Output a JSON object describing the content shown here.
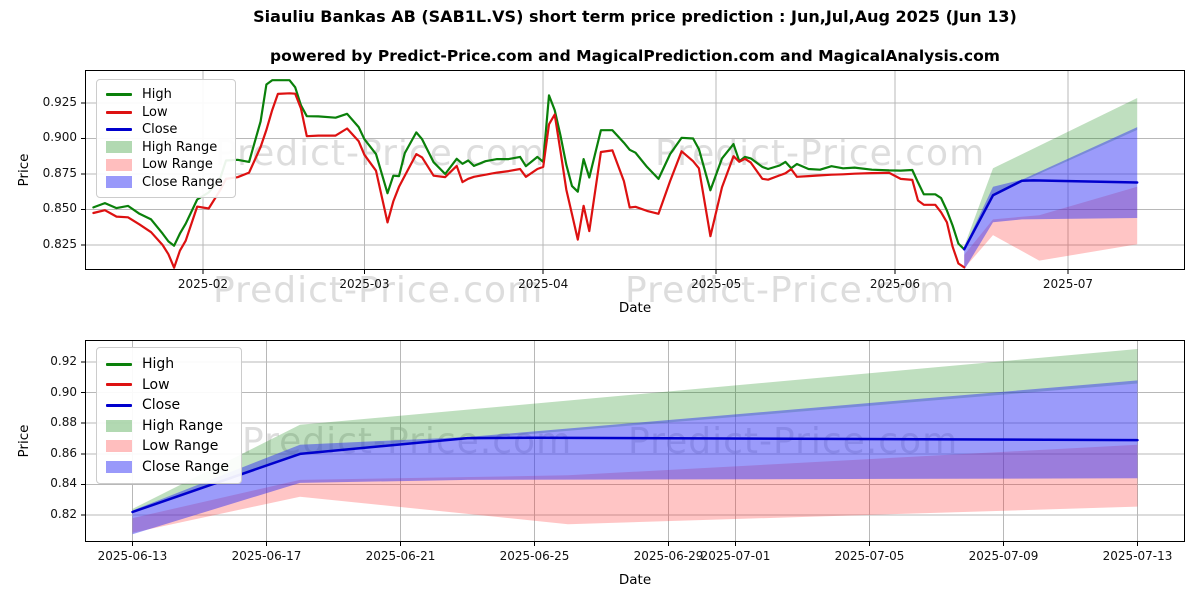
{
  "header": {
    "title": "Siauliu Bankas AB (SAB1L.VS) short term price prediction : Jun,Jul,Aug 2025 (Jun 13)",
    "subtitle": "powered by Predict-Price.com and MagicalPrediction.com and MagicalAnalysis.com"
  },
  "watermark": "Predict-Price.com",
  "colors": {
    "high_line": "#0a800a",
    "low_line": "#dd1111",
    "close_line": "#0000cd",
    "high_band": "rgba(0,128,0,0.25)",
    "low_band": "rgba(255,40,40,0.27)",
    "close_band": "rgba(45,45,245,0.48)",
    "grid": "#b8b8b8",
    "frame": "#000000"
  },
  "chart_data": [
    {
      "type": "line",
      "name": "price-history-and-prediction",
      "xlabel": "Date",
      "ylabel": "Price",
      "grid": true,
      "legend_position": "upper left",
      "xlim": [
        "2025-01-11T13:00",
        "2025-07-21T07:00"
      ],
      "ylim": [
        0.8074,
        0.9482
      ],
      "x_ticks": [
        {
          "t": "2025-02-01",
          "label": "2025-02"
        },
        {
          "t": "2025-03-01",
          "label": "2025-03"
        },
        {
          "t": "2025-04-01",
          "label": "2025-04"
        },
        {
          "t": "2025-05-01",
          "label": "2025-05"
        },
        {
          "t": "2025-06-01",
          "label": "2025-06"
        },
        {
          "t": "2025-07-01",
          "label": "2025-07"
        }
      ],
      "y_ticks": [
        {
          "v": 0.825,
          "label": "0.825"
        },
        {
          "v": 0.85,
          "label": "0.850"
        },
        {
          "v": 0.875,
          "label": "0.875"
        },
        {
          "v": 0.9,
          "label": "0.900"
        },
        {
          "v": 0.925,
          "label": "0.925"
        }
      ],
      "legend": [
        {
          "label": "High",
          "swatch": "line",
          "color": "#0a800a"
        },
        {
          "label": "Low",
          "swatch": "line",
          "color": "#dd1111"
        },
        {
          "label": "Close",
          "swatch": "line",
          "color": "#0000cd"
        },
        {
          "label": "High Range",
          "swatch": "patch",
          "color": "rgba(0,128,0,0.3)"
        },
        {
          "label": "Low Range",
          "swatch": "patch",
          "color": "rgba(255,40,40,0.3)"
        },
        {
          "label": "Close Range",
          "swatch": "patch",
          "color": "rgba(70,70,245,0.55)"
        }
      ],
      "bands": [
        {
          "name": "High Range",
          "fill": "rgba(0,128,0,0.25)",
          "x": [
            "2025-06-13",
            "2025-06-18",
            "2025-07-13"
          ],
          "top": [
            0.824,
            0.879,
            0.9285
          ],
          "bottom": [
            0.8215,
            0.8605,
            0.906
          ]
        },
        {
          "name": "Low Range",
          "fill": "rgba(255,40,40,0.27)",
          "x": [
            "2025-06-13",
            "2025-06-18",
            "2025-06-26",
            "2025-07-13"
          ],
          "top": [
            0.818,
            0.843,
            0.846,
            0.866
          ],
          "bottom": [
            0.8085,
            0.832,
            0.814,
            0.8255
          ]
        },
        {
          "name": "Close Range",
          "fill": "rgba(45,45,245,0.48)",
          "x": [
            "2025-06-13",
            "2025-06-18",
            "2025-06-23",
            "2025-07-13"
          ],
          "top": [
            0.823,
            0.866,
            0.871,
            0.908
          ],
          "bottom": [
            0.8075,
            0.841,
            0.843,
            0.844
          ]
        }
      ],
      "series": [
        {
          "name": "High",
          "color": "#0a800a",
          "width": 2.2,
          "x": [
            "2025-01-13",
            "2025-01-15",
            "2025-01-17",
            "2025-01-19",
            "2025-01-21",
            "2025-01-23",
            "2025-01-25",
            "2025-01-26",
            "2025-01-27",
            "2025-01-28",
            "2025-01-29",
            "2025-01-31",
            "2025-02-02",
            "2025-02-04",
            "2025-02-05",
            "2025-02-07",
            "2025-02-09",
            "2025-02-11",
            "2025-02-12",
            "2025-02-13",
            "2025-02-14",
            "2025-02-16",
            "2025-02-17",
            "2025-02-18",
            "2025-02-19",
            "2025-02-21",
            "2025-02-24",
            "2025-02-26",
            "2025-02-28",
            "2025-03-01",
            "2025-03-03",
            "2025-03-05",
            "2025-03-06",
            "2025-03-07",
            "2025-03-08",
            "2025-03-10",
            "2025-03-11",
            "2025-03-13",
            "2025-03-15",
            "2025-03-17",
            "2025-03-18",
            "2025-03-19",
            "2025-03-20",
            "2025-03-22",
            "2025-03-24",
            "2025-03-26",
            "2025-03-28",
            "2025-03-29",
            "2025-03-31",
            "2025-04-01",
            "2025-04-02",
            "2025-04-03",
            "2025-04-04",
            "2025-04-05",
            "2025-04-06",
            "2025-04-07",
            "2025-04-08",
            "2025-04-09",
            "2025-04-11",
            "2025-04-13",
            "2025-04-15",
            "2025-04-16",
            "2025-04-17",
            "2025-04-19",
            "2025-04-21",
            "2025-04-23",
            "2025-04-25",
            "2025-04-27",
            "2025-04-28",
            "2025-04-30",
            "2025-05-02",
            "2025-05-04",
            "2025-05-05",
            "2025-05-06",
            "2025-05-07",
            "2025-05-09",
            "2025-05-10",
            "2025-05-12",
            "2025-05-13",
            "2025-05-14",
            "2025-05-15",
            "2025-05-17",
            "2025-05-19",
            "2025-05-21",
            "2025-05-23",
            "2025-05-25",
            "2025-05-28",
            "2025-05-31",
            "2025-06-02",
            "2025-06-04",
            "2025-06-05",
            "2025-06-06",
            "2025-06-08",
            "2025-06-09",
            "2025-06-10",
            "2025-06-11",
            "2025-06-12",
            "2025-06-13"
          ],
          "y": [
            0.8515,
            0.8545,
            0.851,
            0.8525,
            0.847,
            0.843,
            0.833,
            0.8275,
            0.8245,
            0.833,
            0.84,
            0.857,
            0.862,
            0.872,
            0.8845,
            0.885,
            0.8835,
            0.912,
            0.938,
            0.941,
            0.941,
            0.941,
            0.936,
            0.9233,
            0.9157,
            0.9155,
            0.9146,
            0.9174,
            0.908,
            0.8995,
            0.889,
            0.8615,
            0.8738,
            0.8735,
            0.8897,
            0.9043,
            0.8995,
            0.8833,
            0.875,
            0.8857,
            0.8822,
            0.8845,
            0.8807,
            0.884,
            0.8855,
            0.8855,
            0.887,
            0.8805,
            0.887,
            0.8835,
            0.9303,
            0.92,
            0.902,
            0.8815,
            0.8665,
            0.8625,
            0.8855,
            0.8725,
            0.9058,
            0.9058,
            0.897,
            0.892,
            0.89,
            0.88,
            0.8715,
            0.889,
            0.9005,
            0.9,
            0.8925,
            0.8635,
            0.886,
            0.896,
            0.884,
            0.887,
            0.886,
            0.88,
            0.8785,
            0.881,
            0.8835,
            0.879,
            0.882,
            0.8785,
            0.878,
            0.8805,
            0.879,
            0.8795,
            0.878,
            0.8775,
            0.8774,
            0.8778,
            0.8691,
            0.8607,
            0.8607,
            0.858,
            0.8493,
            0.8387,
            0.826,
            0.822
          ]
        },
        {
          "name": "Low",
          "color": "#dd1111",
          "width": 2.2,
          "x": [
            "2025-01-13",
            "2025-01-15",
            "2025-01-17",
            "2025-01-19",
            "2025-01-21",
            "2025-01-23",
            "2025-01-25",
            "2025-01-26",
            "2025-01-27",
            "2025-01-28",
            "2025-01-29",
            "2025-01-31",
            "2025-02-02",
            "2025-02-04",
            "2025-02-05",
            "2025-02-07",
            "2025-02-09",
            "2025-02-11",
            "2025-02-12",
            "2025-02-13",
            "2025-02-14",
            "2025-02-16",
            "2025-02-17",
            "2025-02-18",
            "2025-02-19",
            "2025-02-21",
            "2025-02-24",
            "2025-02-26",
            "2025-02-28",
            "2025-03-01",
            "2025-03-03",
            "2025-03-05",
            "2025-03-06",
            "2025-03-07",
            "2025-03-08",
            "2025-03-10",
            "2025-03-11",
            "2025-03-13",
            "2025-03-15",
            "2025-03-17",
            "2025-03-18",
            "2025-03-19",
            "2025-03-20",
            "2025-03-22",
            "2025-03-24",
            "2025-03-26",
            "2025-03-28",
            "2025-03-29",
            "2025-03-31",
            "2025-04-01",
            "2025-04-02",
            "2025-04-03",
            "2025-04-04",
            "2025-04-05",
            "2025-04-06",
            "2025-04-07",
            "2025-04-08",
            "2025-04-09",
            "2025-04-11",
            "2025-04-13",
            "2025-04-15",
            "2025-04-16",
            "2025-04-17",
            "2025-04-19",
            "2025-04-21",
            "2025-04-23",
            "2025-04-25",
            "2025-04-27",
            "2025-04-28",
            "2025-04-30",
            "2025-05-02",
            "2025-05-04",
            "2025-05-05",
            "2025-05-06",
            "2025-05-07",
            "2025-05-09",
            "2025-05-10",
            "2025-05-12",
            "2025-05-13",
            "2025-05-14",
            "2025-05-15",
            "2025-05-17",
            "2025-05-19",
            "2025-05-21",
            "2025-05-23",
            "2025-05-25",
            "2025-05-28",
            "2025-05-31",
            "2025-06-02",
            "2025-06-04",
            "2025-06-05",
            "2025-06-06",
            "2025-06-08",
            "2025-06-09",
            "2025-06-10",
            "2025-06-11",
            "2025-06-12",
            "2025-06-13"
          ],
          "y": [
            0.8475,
            0.8495,
            0.845,
            0.8445,
            0.8395,
            0.834,
            0.825,
            0.8185,
            0.809,
            0.821,
            0.828,
            0.852,
            0.8507,
            0.8638,
            0.8715,
            0.8727,
            0.876,
            0.894,
            0.906,
            0.92,
            0.9314,
            0.9318,
            0.9315,
            0.921,
            0.9016,
            0.902,
            0.902,
            0.907,
            0.898,
            0.8885,
            0.8773,
            0.8409,
            0.8557,
            0.866,
            0.8738,
            0.889,
            0.8867,
            0.8738,
            0.8728,
            0.8807,
            0.8693,
            0.8716,
            0.873,
            0.8745,
            0.876,
            0.877,
            0.8785,
            0.873,
            0.8785,
            0.88,
            0.91,
            0.9169,
            0.891,
            0.864,
            0.8466,
            0.8288,
            0.8526,
            0.8348,
            0.8905,
            0.8916,
            0.87,
            0.8514,
            0.8519,
            0.849,
            0.847,
            0.87,
            0.891,
            0.884,
            0.879,
            0.8312,
            0.8657,
            0.8875,
            0.8836,
            0.8857,
            0.883,
            0.8716,
            0.871,
            0.874,
            0.8755,
            0.8784,
            0.873,
            0.8735,
            0.874,
            0.8745,
            0.8748,
            0.8752,
            0.8756,
            0.8758,
            0.8715,
            0.8708,
            0.8563,
            0.8533,
            0.8533,
            0.848,
            0.841,
            0.8238,
            0.812,
            0.8093
          ]
        },
        {
          "name": "Close",
          "color": "#0000cd",
          "width": 2.5,
          "x": [
            "2025-06-13",
            "2025-06-18",
            "2025-06-23",
            "2025-06-25",
            "2025-07-13"
          ],
          "y": [
            0.822,
            0.86,
            0.8703,
            0.8705,
            0.869
          ]
        }
      ]
    },
    {
      "type": "line",
      "name": "prediction-detail",
      "xlabel": "Date",
      "ylabel": "Price",
      "grid": true,
      "legend_position": "upper left",
      "xlim": [
        "2025-06-11T14:00",
        "2025-07-14T10:00"
      ],
      "ylim": [
        0.8024,
        0.9344
      ],
      "x_ticks": [
        {
          "t": "2025-06-13",
          "label": "2025-06-13"
        },
        {
          "t": "2025-06-17",
          "label": "2025-06-17"
        },
        {
          "t": "2025-06-21",
          "label": "2025-06-21"
        },
        {
          "t": "2025-06-25",
          "label": "2025-06-25"
        },
        {
          "t": "2025-06-29",
          "label": "2025-06-29"
        },
        {
          "t": "2025-07-01",
          "label": "2025-07-01"
        },
        {
          "t": "2025-07-05",
          "label": "2025-07-05"
        },
        {
          "t": "2025-07-09",
          "label": "2025-07-09"
        },
        {
          "t": "2025-07-13",
          "label": "2025-07-13"
        }
      ],
      "y_ticks": [
        {
          "v": 0.82,
          "label": "0.82"
        },
        {
          "v": 0.84,
          "label": "0.84"
        },
        {
          "v": 0.86,
          "label": "0.86"
        },
        {
          "v": 0.88,
          "label": "0.88"
        },
        {
          "v": 0.9,
          "label": "0.90"
        },
        {
          "v": 0.92,
          "label": "0.92"
        }
      ],
      "legend": [
        {
          "label": "High",
          "swatch": "line",
          "color": "#0a800a"
        },
        {
          "label": "Low",
          "swatch": "line",
          "color": "#dd1111"
        },
        {
          "label": "Close",
          "swatch": "line",
          "color": "#0000cd"
        },
        {
          "label": "High Range",
          "swatch": "patch",
          "color": "rgba(0,128,0,0.3)"
        },
        {
          "label": "Low Range",
          "swatch": "patch",
          "color": "rgba(255,40,40,0.3)"
        },
        {
          "label": "Close Range",
          "swatch": "patch",
          "color": "rgba(70,70,245,0.55)"
        }
      ],
      "bands": [
        {
          "name": "High Range",
          "fill": "rgba(0,128,0,0.25)",
          "x": [
            "2025-06-13",
            "2025-06-18",
            "2025-07-13"
          ],
          "top": [
            0.824,
            0.879,
            0.9285
          ],
          "bottom": [
            0.8215,
            0.8605,
            0.906
          ]
        },
        {
          "name": "Low Range",
          "fill": "rgba(255,40,40,0.27)",
          "x": [
            "2025-06-13",
            "2025-06-18",
            "2025-06-26",
            "2025-07-13"
          ],
          "top": [
            0.818,
            0.843,
            0.846,
            0.866
          ],
          "bottom": [
            0.8085,
            0.832,
            0.814,
            0.8255
          ]
        },
        {
          "name": "Close Range",
          "fill": "rgba(45,45,245,0.48)",
          "x": [
            "2025-06-13",
            "2025-06-18",
            "2025-06-23",
            "2025-07-13"
          ],
          "top": [
            0.823,
            0.866,
            0.871,
            0.908
          ],
          "bottom": [
            0.8075,
            0.841,
            0.843,
            0.844
          ]
        }
      ],
      "series": [
        {
          "name": "Close",
          "color": "#0000cd",
          "width": 2.5,
          "x": [
            "2025-06-13",
            "2025-06-18",
            "2025-06-23",
            "2025-06-25",
            "2025-07-13"
          ],
          "y": [
            0.822,
            0.86,
            0.8703,
            0.8705,
            0.869
          ]
        }
      ]
    }
  ]
}
